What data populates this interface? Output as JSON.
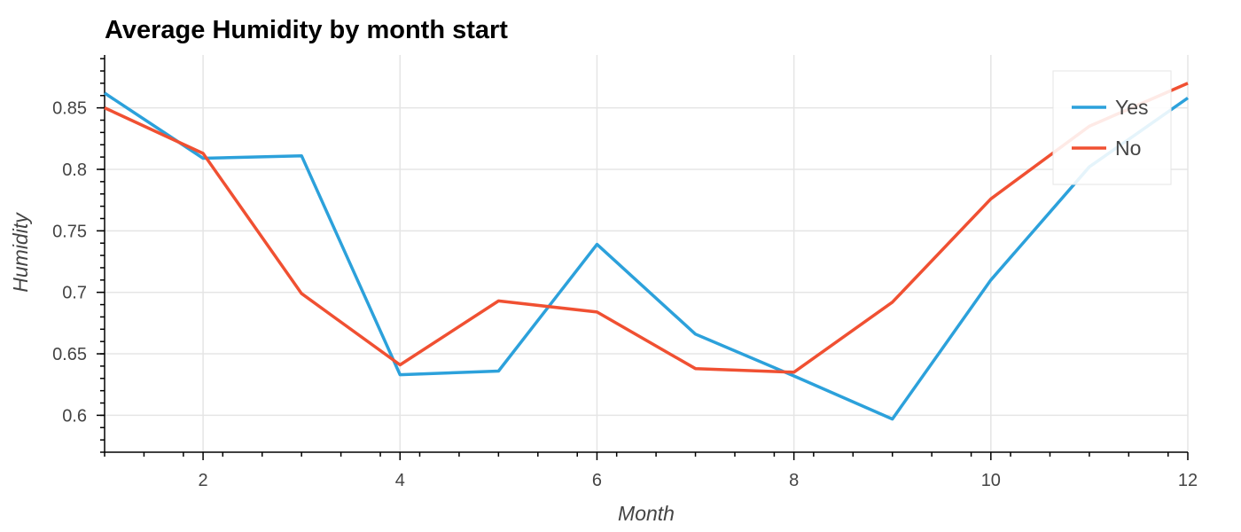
{
  "chart_data": {
    "type": "line",
    "title": "Average Humidity by month start",
    "xlabel": "Month",
    "ylabel": "Humidity",
    "xlim": [
      1,
      12
    ],
    "ylim": [
      0.57,
      0.893
    ],
    "x_ticks": [
      2,
      4,
      6,
      8,
      10,
      12
    ],
    "x_tick_labels": [
      "2",
      "4",
      "6",
      "8",
      "10",
      "12"
    ],
    "y_ticks": [
      0.6,
      0.65,
      0.7,
      0.75,
      0.8,
      0.85
    ],
    "y_tick_labels": [
      "0.6",
      "0.65",
      "0.7",
      "0.75",
      "0.8",
      "0.85"
    ],
    "grid": true,
    "legend_position": "top-right",
    "x": [
      1,
      2,
      3,
      4,
      5,
      6,
      7,
      8,
      9,
      10,
      11,
      12
    ],
    "series": [
      {
        "name": "Yes",
        "color": "#2ca1db",
        "values": [
          0.862,
          0.809,
          0.811,
          0.633,
          0.636,
          0.739,
          0.666,
          0.632,
          0.597,
          0.71,
          0.802,
          0.858
        ]
      },
      {
        "name": "No",
        "color": "#f05032",
        "values": [
          0.85,
          0.813,
          0.699,
          0.641,
          0.693,
          0.684,
          0.638,
          0.635,
          0.692,
          0.776,
          0.835,
          0.87
        ]
      }
    ]
  }
}
